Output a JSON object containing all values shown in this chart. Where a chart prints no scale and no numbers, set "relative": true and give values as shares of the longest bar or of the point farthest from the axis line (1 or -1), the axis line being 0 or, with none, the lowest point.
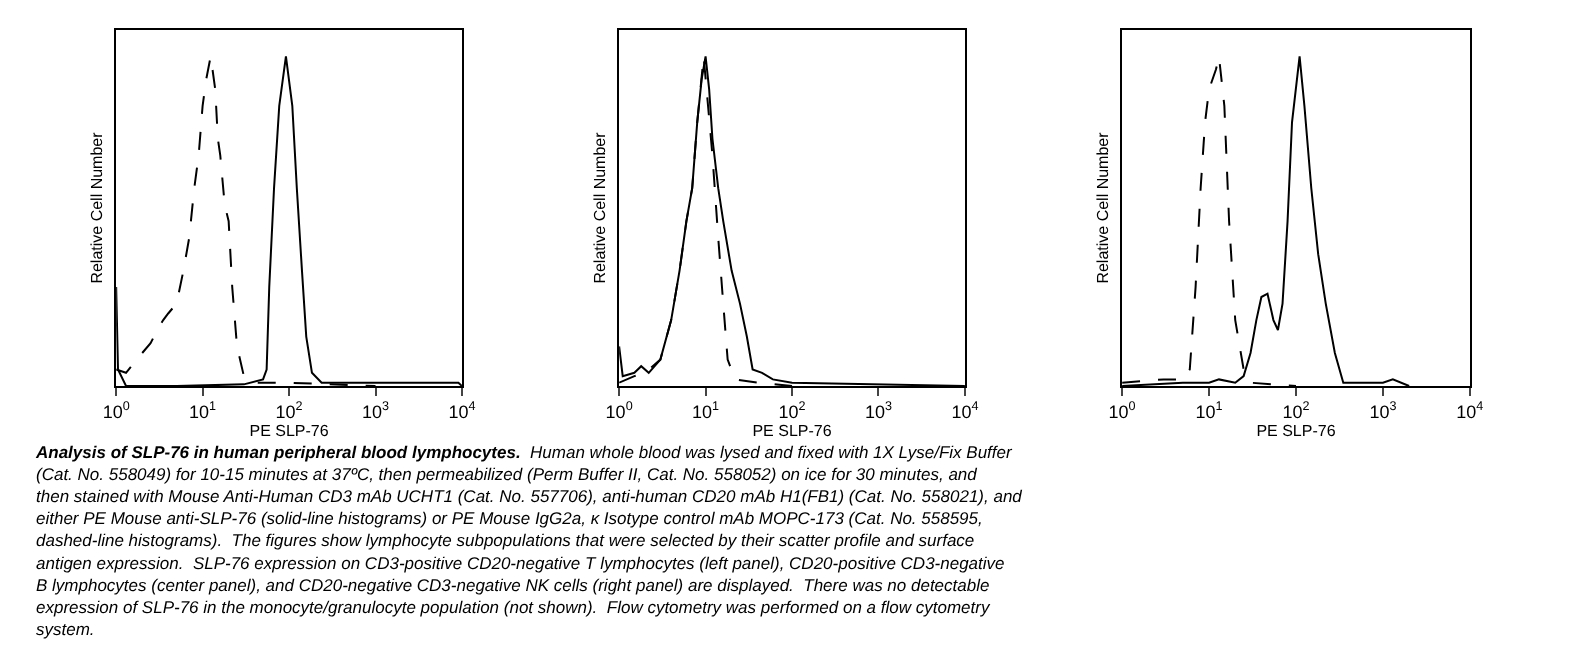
{
  "chart_data": [
    {
      "type": "line",
      "xlabel": "PE SLP-76",
      "ylabel": "Relative Cell Number",
      "relative": true,
      "log": "x",
      "xlim": [
        1,
        10000
      ],
      "xticks": [
        {
          "value": 1,
          "label": "10$^{0}$"
        },
        {
          "value": 10,
          "label": "10$^{1}$"
        },
        {
          "value": 100,
          "label": "10$^{2}$"
        },
        {
          "value": 1000,
          "label": "10$^{3}$"
        },
        {
          "value": 10000,
          "label": "10$^{4}$"
        }
      ],
      "series": [
        {
          "color": "#000000",
          "line_style": "solid",
          "x": [
            1,
            1.05,
            1.3,
            5,
            30,
            50,
            55,
            59,
            67,
            77,
            92,
            109,
            123,
            141,
            158,
            184,
            238,
            570,
            9100,
            10000
          ],
          "values": [
            0.3,
            0.05,
            0.0,
            0.0,
            0.005,
            0.02,
            0.05,
            0.3,
            0.6,
            0.85,
            1.0,
            0.85,
            0.6,
            0.35,
            0.15,
            0.04,
            0.01,
            0.01,
            0.01,
            0.0
          ]
        },
        {
          "color": "#000000",
          "line_style": "dashed",
          "x": [
            1,
            1.3,
            2,
            2.5,
            3,
            3.5,
            4,
            5,
            6,
            7,
            8,
            9,
            10,
            11,
            12.4,
            14,
            15,
            16,
            18,
            20,
            22,
            25,
            30,
            40,
            100,
            1000
          ],
          "values": [
            0.05,
            0.04,
            0.1,
            0.13,
            0.17,
            0.2,
            0.22,
            0.25,
            0.35,
            0.45,
            0.6,
            0.7,
            0.85,
            0.93,
            1.0,
            0.9,
            0.75,
            0.7,
            0.55,
            0.5,
            0.3,
            0.12,
            0.03,
            0.01,
            0.01,
            0.0
          ]
        }
      ],
      "annotations": [
        "Analysis of SLP-76 in human peripheral blood lymphocytes.",
        "Human whole blood was lysed and fixed with 1X Lyse/Fix Buffer (Cat. No. 558049) for 10-15 minutes at 37ºC, then permeabilized (Perm Buffer II, Cat. No. 558052) on ice for 30 minutes, and then stained with Mouse Anti-Human CD3 mAb UCHT1 (Cat. No. 557706), anti-human CD20 mAb H1(FB1) (Cat. No. 558021), and either PE Mouse anti-SLP-76 (solid-line histograms) or PE Mouse IgG2a, κ Isotype control mAb MOPC-173 (Cat. No. 558595, dashed-line histograms).  The figures show lymphocyte subpopulations that were selected by their scatter profile and surface antigen expression.  SLP-76 expression on CD3-positive CD20-negative T lymphocytes (left panel), CD20-positive CD3-negative B lymphocytes (center panel), and CD20-negative CD3-negative NK cells (right panel) are displayed.  There was no detectable expression of SLP-76 in the monocyte/granulocyte population (not shown).  Flow cytometry was performed on a flow cytometry system."
      ]
    },
    {
      "type": "line",
      "xlabel": "PE SLP-76",
      "ylabel": "Relative Cell Number",
      "relative": true,
      "log": "x",
      "xlim": [
        1,
        10000
      ],
      "xticks": [
        {
          "value": 1,
          "label": "10$^{0}$"
        },
        {
          "value": 10,
          "label": "10$^{1}$"
        },
        {
          "value": 100,
          "label": "10$^{2}$"
        },
        {
          "value": 1000,
          "label": "10$^{3}$"
        },
        {
          "value": 10000,
          "label": "10$^{4}$"
        }
      ],
      "series": [
        {
          "color": "#000000",
          "line_style": "solid",
          "x": [
            1,
            1.1,
            1.5,
            1.8,
            2.2,
            3,
            4,
            5,
            6,
            7,
            8,
            9,
            10,
            11,
            12,
            14,
            16,
            20,
            25,
            30,
            35,
            45,
            60,
            100,
            10000
          ],
          "values": [
            0.12,
            0.03,
            0.04,
            0.06,
            0.04,
            0.08,
            0.2,
            0.35,
            0.5,
            0.6,
            0.8,
            0.93,
            1.0,
            0.9,
            0.75,
            0.6,
            0.5,
            0.35,
            0.25,
            0.15,
            0.05,
            0.04,
            0.02,
            0.01,
            0.0
          ]
        },
        {
          "color": "#000000",
          "line_style": "dashed",
          "x": [
            1,
            1.5,
            2,
            3,
            4,
            5,
            6,
            7,
            8,
            9.5,
            12,
            14,
            16,
            18,
            22,
            40,
            100
          ],
          "values": [
            0.01,
            0.03,
            0.04,
            0.08,
            0.2,
            0.35,
            0.5,
            0.6,
            0.8,
            1.0,
            0.7,
            0.45,
            0.25,
            0.08,
            0.02,
            0.01,
            0.0
          ]
        }
      ]
    },
    {
      "type": "line",
      "xlabel": "PE SLP-76",
      "ylabel": "Relative Cell Number",
      "relative": true,
      "log": "x",
      "xlim": [
        1,
        10000
      ],
      "xticks": [
        {
          "value": 1,
          "label": "10$^{0}$"
        },
        {
          "value": 10,
          "label": "10$^{1}$"
        },
        {
          "value": 100,
          "label": "10$^{2}$"
        },
        {
          "value": 1000,
          "label": "10$^{3}$"
        },
        {
          "value": 10000,
          "label": "10$^{4}$"
        }
      ],
      "series": [
        {
          "color": "#000000",
          "line_style": "solid",
          "x": [
            1,
            5,
            10,
            13,
            20,
            25,
            30,
            35,
            40,
            47,
            55,
            62,
            70,
            80,
            90,
            110,
            125,
            150,
            180,
            220,
            280,
            350,
            1000,
            1300,
            2000
          ],
          "values": [
            0.0,
            0.01,
            0.01,
            0.02,
            0.01,
            0.03,
            0.1,
            0.2,
            0.27,
            0.28,
            0.2,
            0.17,
            0.25,
            0.5,
            0.8,
            1.0,
            0.85,
            0.6,
            0.4,
            0.25,
            0.1,
            0.01,
            0.01,
            0.02,
            0.0
          ]
        },
        {
          "color": "#000000",
          "line_style": "dashed",
          "x": [
            1,
            3,
            5,
            6,
            7,
            8,
            9,
            10,
            12,
            13,
            15,
            17,
            20,
            25,
            30,
            100
          ],
          "values": [
            0.01,
            0.02,
            0.02,
            0.05,
            0.3,
            0.6,
            0.8,
            0.9,
            0.96,
            1.0,
            0.85,
            0.5,
            0.2,
            0.05,
            0.01,
            0.0
          ]
        }
      ]
    }
  ]
}
